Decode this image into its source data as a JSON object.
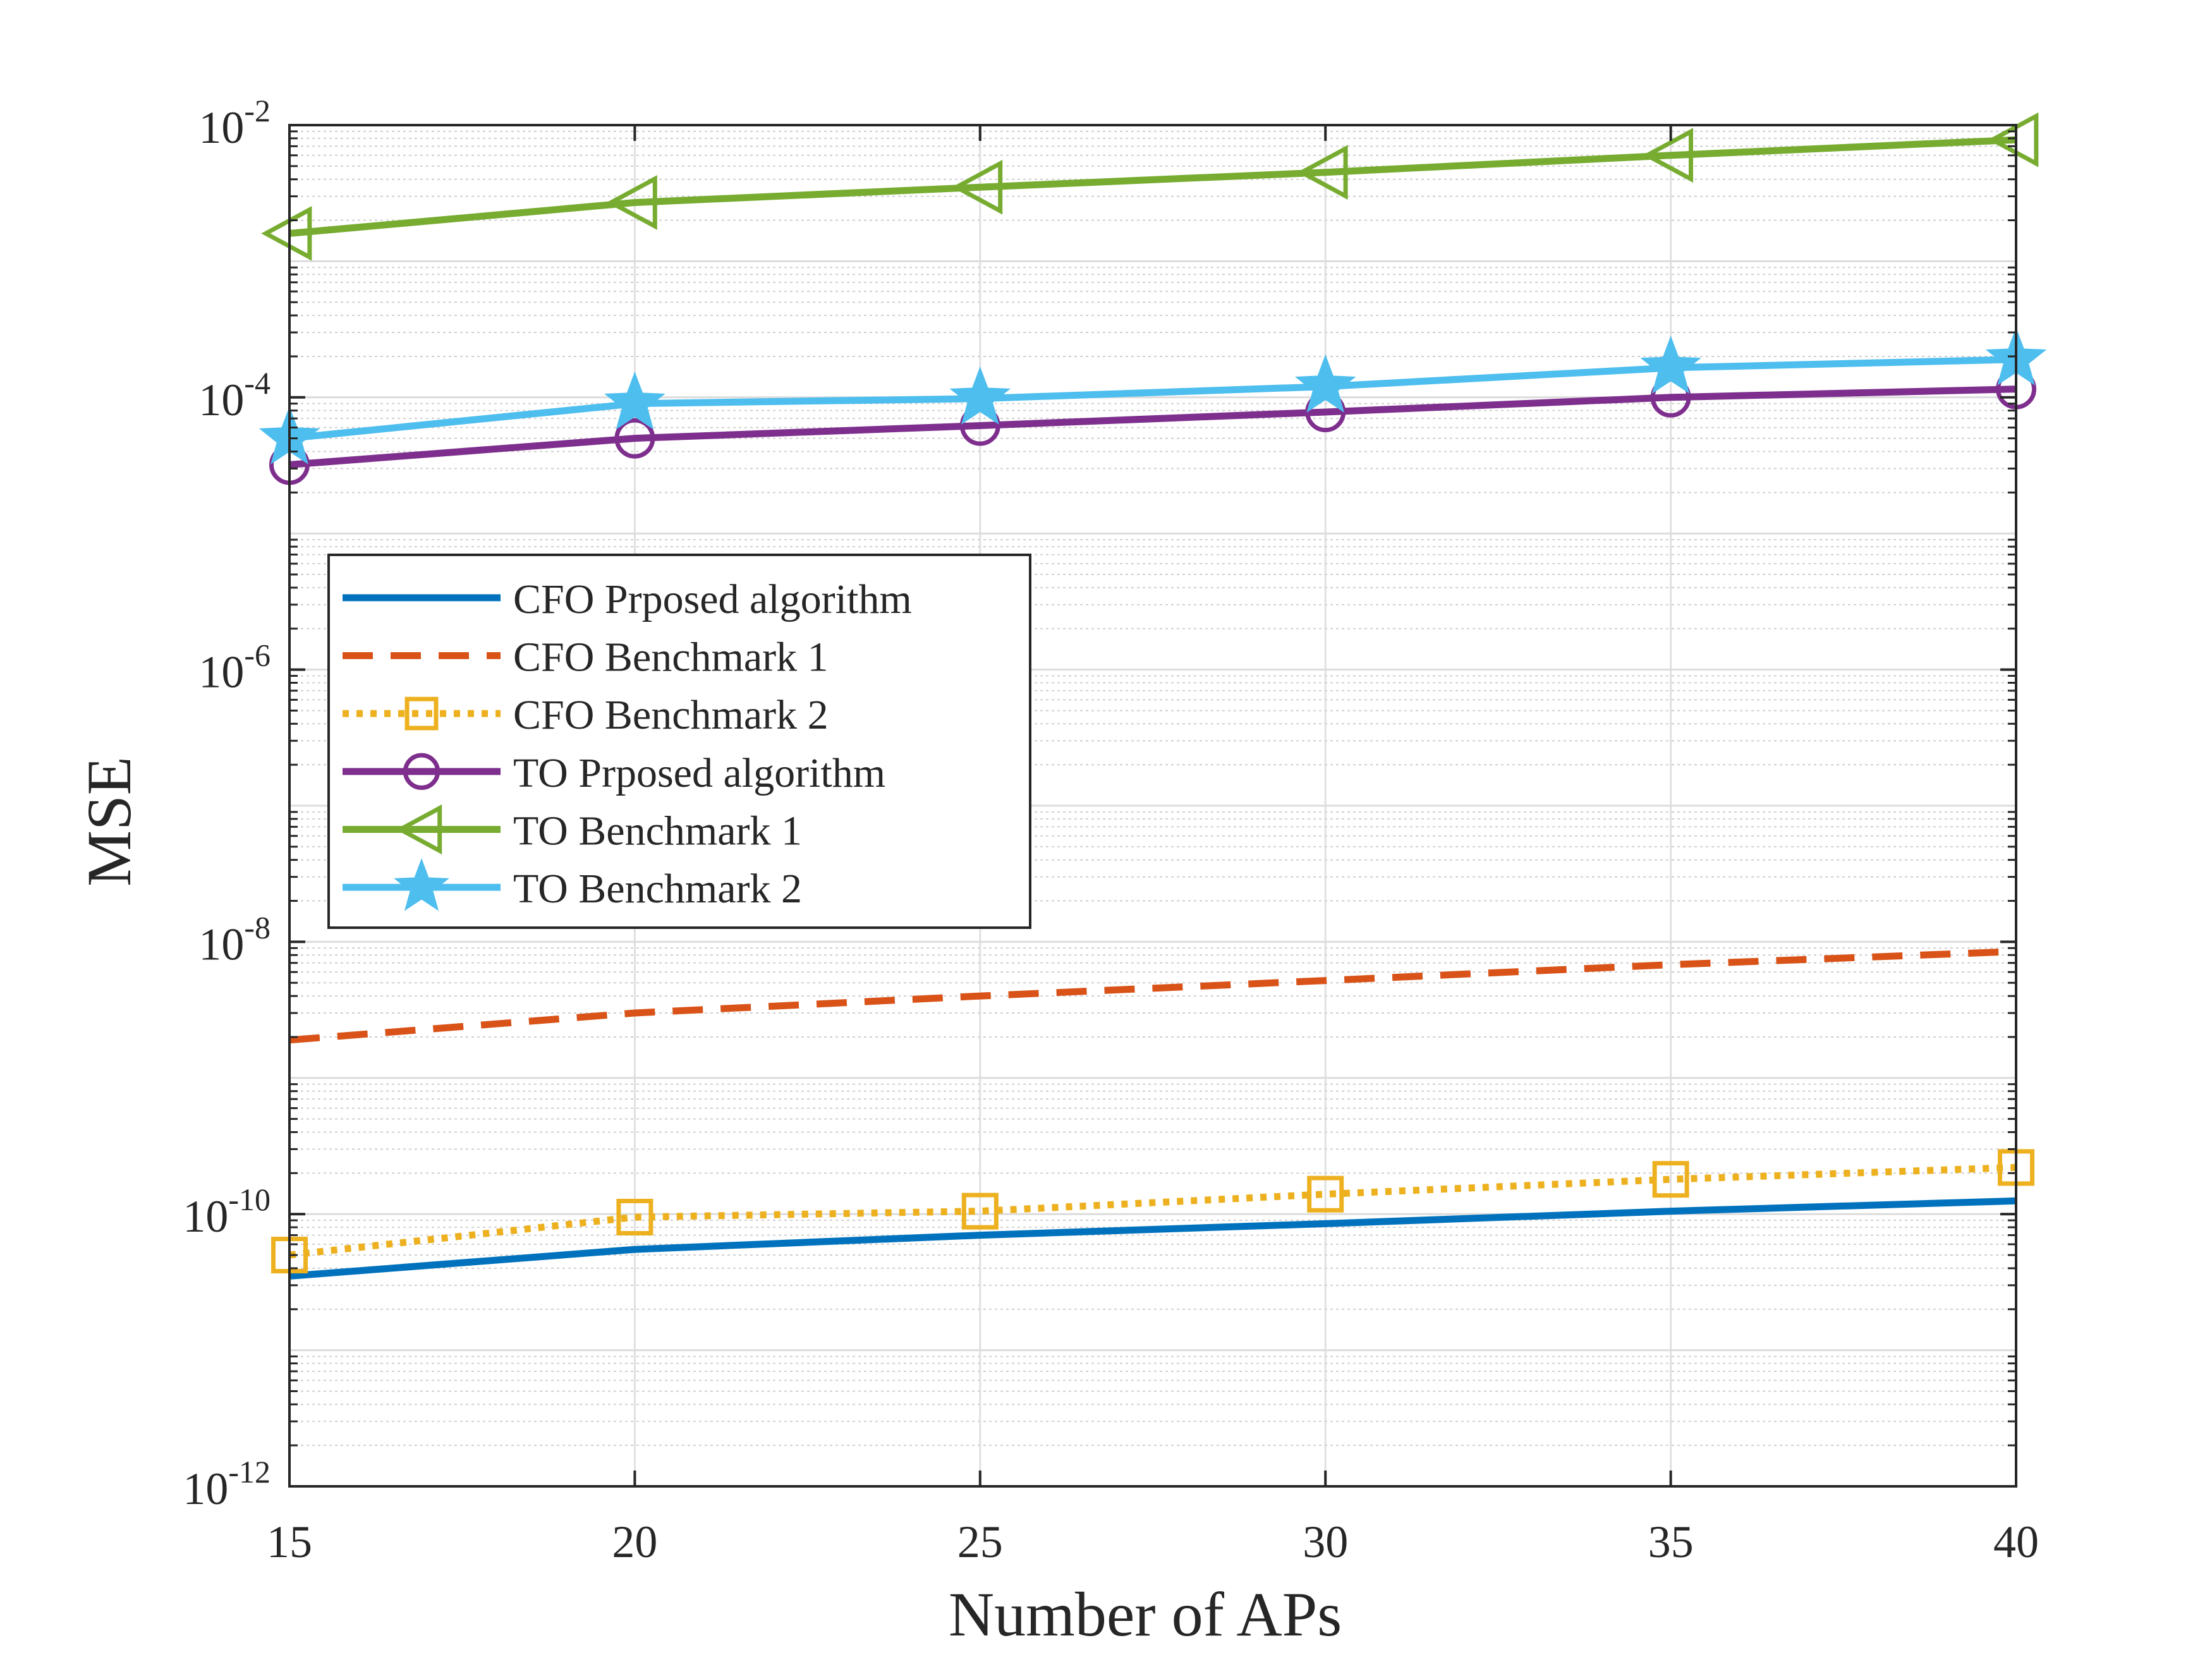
{
  "chart_data": {
    "type": "line",
    "title": "",
    "xlabel": "Number of APs",
    "ylabel": "MSE",
    "yscale": "log",
    "xlim": [
      15,
      40
    ],
    "ylim": [
      1e-12,
      0.01
    ],
    "grid": true,
    "legend_position": "left-center",
    "x_ticks": [
      15,
      20,
      25,
      30,
      35,
      40
    ],
    "x_tick_labels": [
      "15",
      "20",
      "25",
      "30",
      "35",
      "40"
    ],
    "y_ticks": [
      -12,
      -10,
      -8,
      -6,
      -4,
      -2
    ],
    "y_tick_labels": [
      {
        "base": "10",
        "exp": "-12"
      },
      {
        "base": "10",
        "exp": "-10"
      },
      {
        "base": "10",
        "exp": "-8"
      },
      {
        "base": "10",
        "exp": "-6"
      },
      {
        "base": "10",
        "exp": "-4"
      },
      {
        "base": "10",
        "exp": "-2"
      }
    ],
    "x": [
      15,
      20,
      25,
      30,
      35,
      40
    ],
    "series": [
      {
        "name": "CFO Prposed algorithm",
        "color": "#0072BD",
        "dash": "solid",
        "marker": "none",
        "values": [
          3.5e-11,
          5.5e-11,
          7e-11,
          8.5e-11,
          1.05e-10,
          1.25e-10
        ]
      },
      {
        "name": "CFO Benchmark 1",
        "color": "#D95319",
        "dash": "dashed",
        "marker": "none",
        "values": [
          1.9e-09,
          3e-09,
          4e-09,
          5.2e-09,
          6.8e-09,
          8.5e-09
        ]
      },
      {
        "name": "CFO Benchmark 2",
        "color": "#EDB120",
        "dash": "dotted",
        "marker": "square",
        "values": [
          5e-11,
          9.5e-11,
          1.05e-10,
          1.4e-10,
          1.8e-10,
          2.2e-10
        ]
      },
      {
        "name": "TO Prposed algorithm",
        "color": "#7E2F8E",
        "dash": "solid",
        "marker": "circle",
        "values": [
          3.2e-05,
          5e-05,
          6.2e-05,
          7.8e-05,
          0.0001,
          0.000115
        ]
      },
      {
        "name": "TO Benchmark 1",
        "color": "#77AC30",
        "dash": "solid",
        "marker": "triangle-left",
        "values": [
          0.0016,
          0.0027,
          0.0035,
          0.0045,
          0.006,
          0.0078
        ]
      },
      {
        "name": "TO Benchmark 2",
        "color": "#4DBEEE",
        "dash": "solid",
        "marker": "star",
        "values": [
          5e-05,
          9e-05,
          9.8e-05,
          0.00012,
          0.000165,
          0.00019
        ]
      }
    ]
  }
}
